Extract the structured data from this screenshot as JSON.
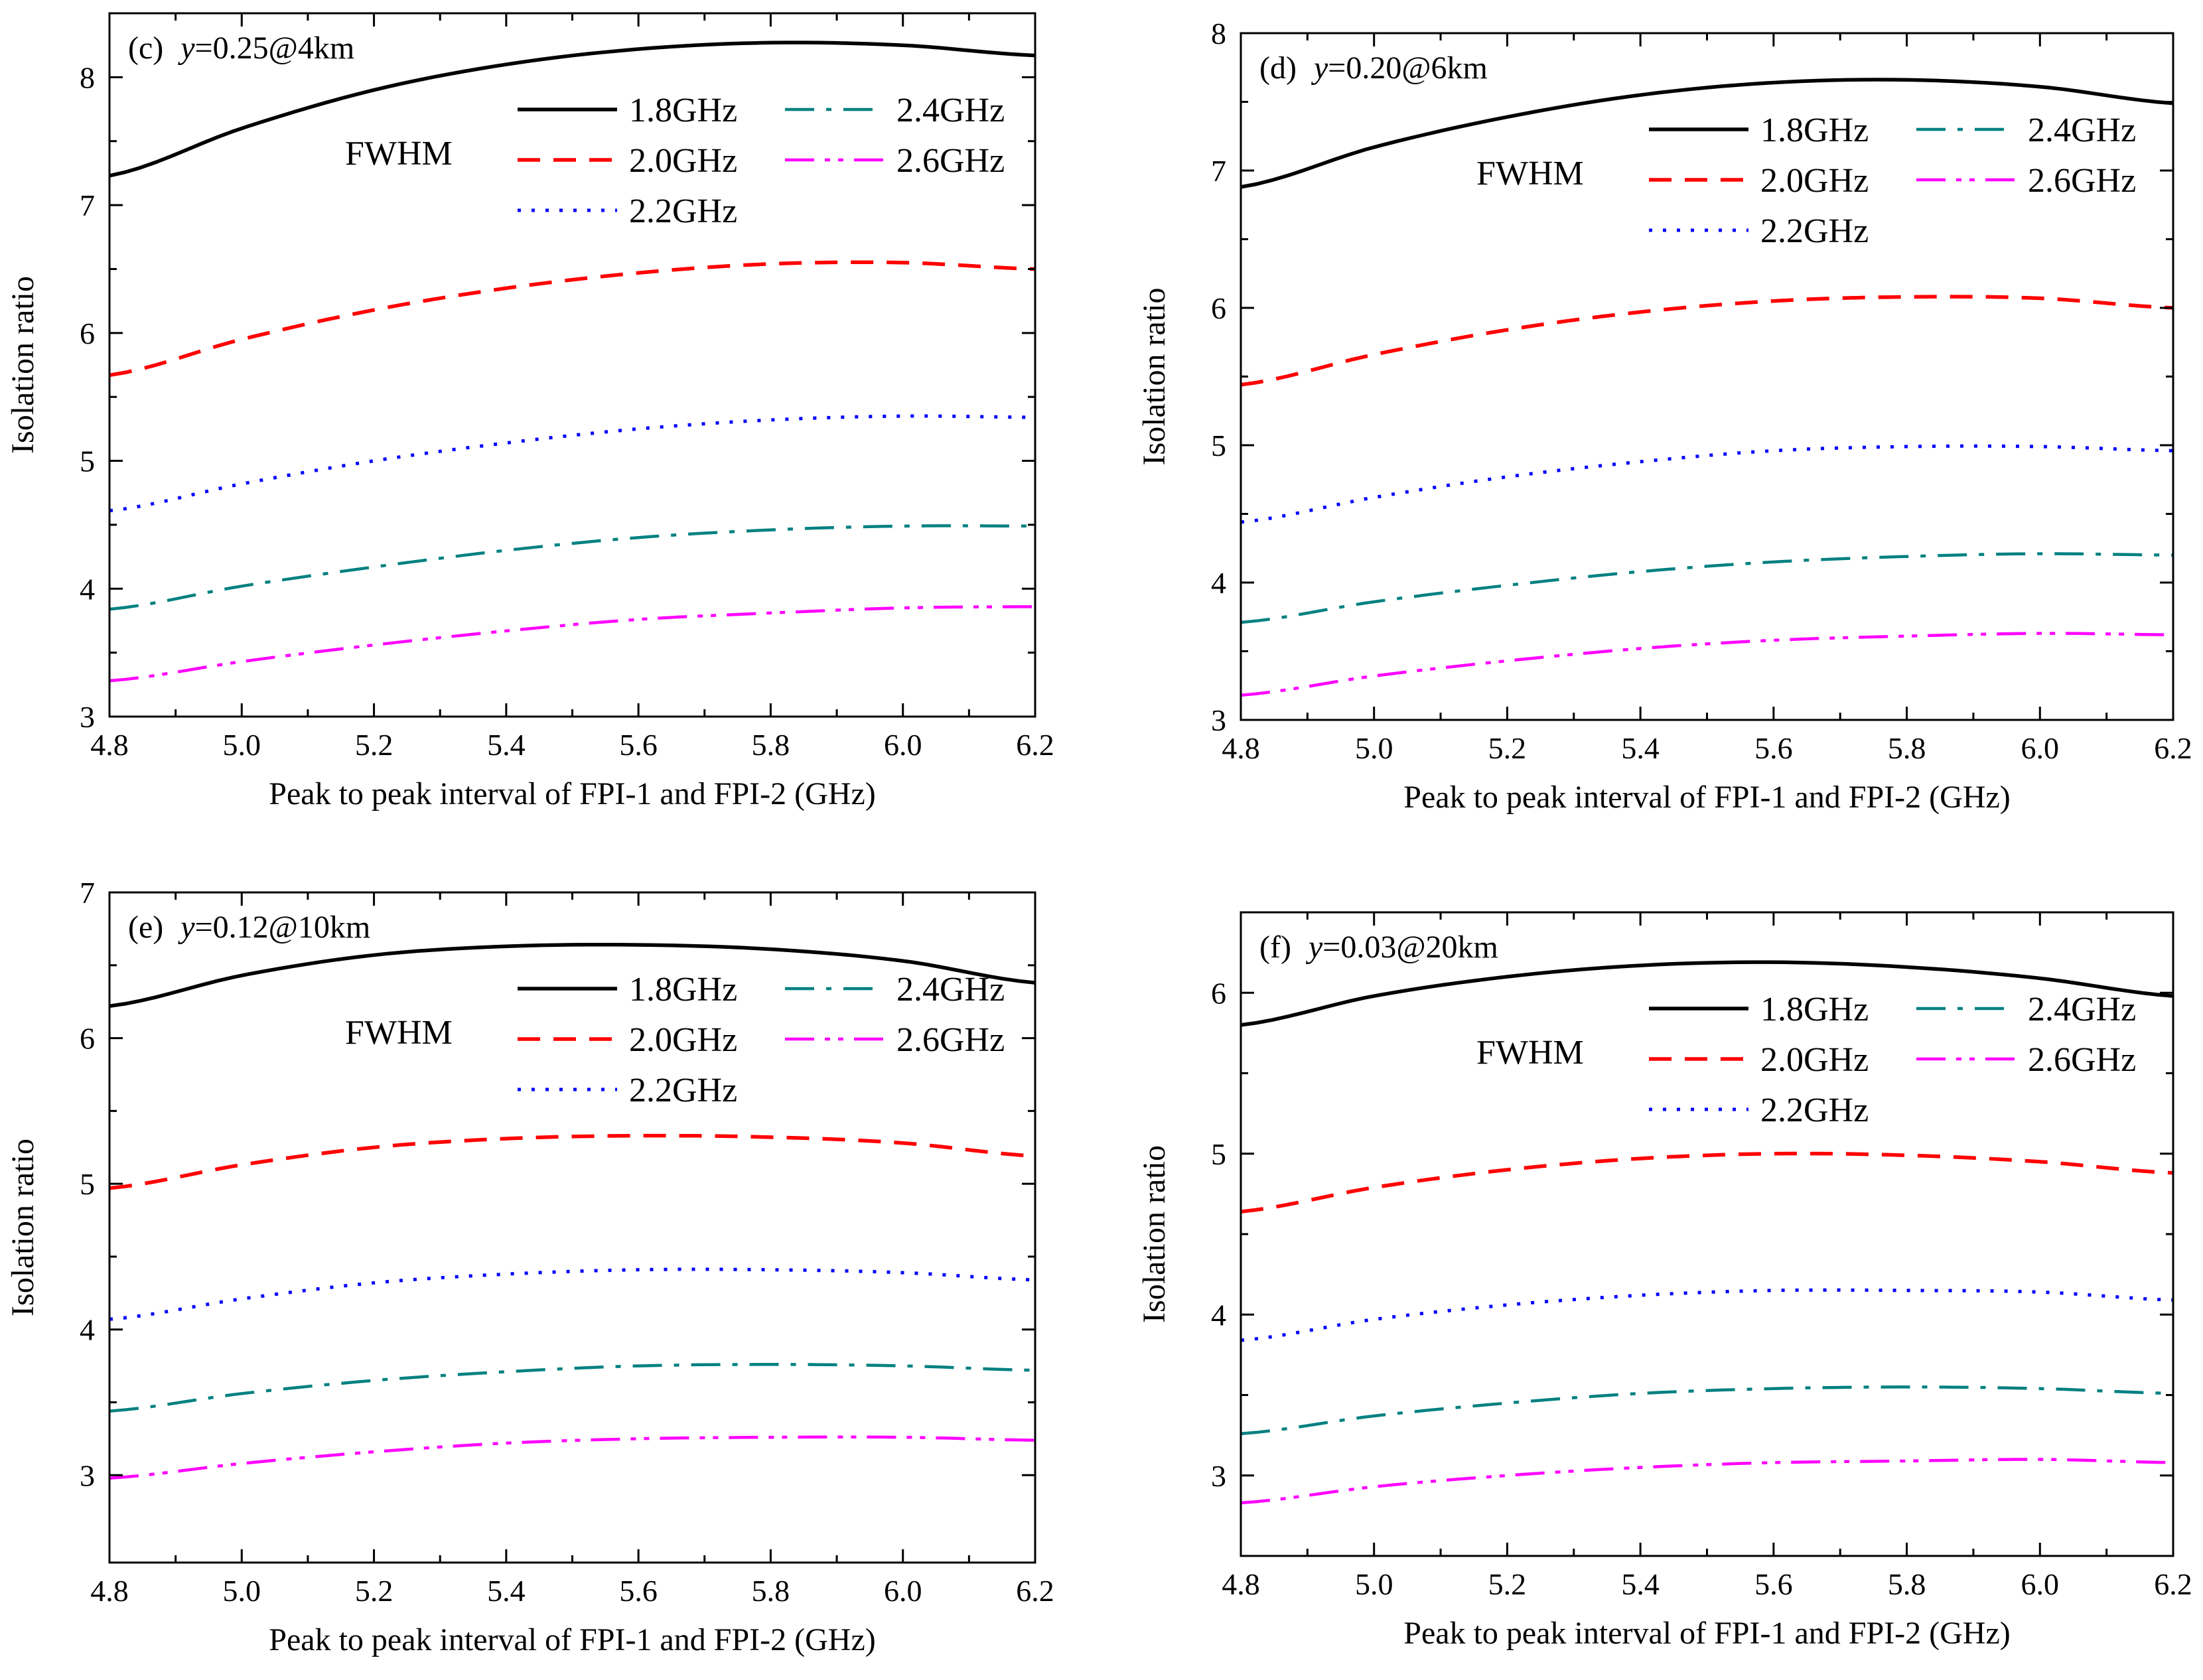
{
  "chart_data": [
    {
      "type": "line",
      "panel": "(c)",
      "annotation_symbol": "y",
      "annotation_rest": "=0.25@4km",
      "xlabel": "Peak to peak interval of FPI-1 and FPI-2 (GHz)",
      "ylabel": "Isolation ratio",
      "xlim": [
        4.8,
        6.2
      ],
      "ylim": [
        3,
        8.5
      ],
      "xticks": [
        "4.8",
        "5.0",
        "5.2",
        "5.4",
        "5.6",
        "5.8",
        "6.0",
        "6.2"
      ],
      "yticks": [
        "3",
        "4",
        "5",
        "6",
        "7",
        "8"
      ],
      "legend_title": "FWHM",
      "x": [
        4.8,
        5.0,
        5.2,
        5.4,
        5.6,
        5.8,
        6.0,
        6.2
      ],
      "series": [
        {
          "name": "1.8GHz",
          "color": "#000000",
          "values": [
            7.23,
            7.6,
            7.9,
            8.1,
            8.22,
            8.27,
            8.25,
            8.17
          ]
        },
        {
          "name": "2.0GHz",
          "color": "#ff0000",
          "values": [
            5.67,
            5.95,
            6.18,
            6.35,
            6.47,
            6.54,
            6.55,
            6.5
          ]
        },
        {
          "name": "2.2GHz",
          "color": "#0000ff",
          "values": [
            4.61,
            4.82,
            5.0,
            5.14,
            5.25,
            5.32,
            5.35,
            5.34
          ]
        },
        {
          "name": "2.4GHz",
          "color": "#008080",
          "values": [
            3.84,
            4.02,
            4.17,
            4.3,
            4.4,
            4.46,
            4.49,
            4.49
          ]
        },
        {
          "name": "2.6GHz",
          "color": "#ff00ff",
          "values": [
            3.28,
            3.43,
            3.56,
            3.67,
            3.76,
            3.81,
            3.85,
            3.86
          ]
        }
      ]
    },
    {
      "type": "line",
      "panel": "(d)",
      "annotation_symbol": "y",
      "annotation_rest": "=0.20@6km",
      "xlabel": "Peak to peak interval of FPI-1 and FPI-2 (GHz)",
      "ylabel": "Isolation ratio",
      "xlim": [
        4.8,
        6.2
      ],
      "ylim": [
        3,
        8
      ],
      "xticks": [
        "4.8",
        "5.0",
        "5.2",
        "5.4",
        "5.6",
        "5.8",
        "6.0",
        "6.2"
      ],
      "yticks": [
        "3",
        "4",
        "5",
        "6",
        "7",
        "8"
      ],
      "legend_title": "FWHM",
      "x": [
        4.8,
        5.0,
        5.2,
        5.4,
        5.6,
        5.8,
        6.0,
        6.2
      ],
      "series": [
        {
          "name": "1.8GHz",
          "color": "#000000",
          "values": [
            6.88,
            7.17,
            7.39,
            7.55,
            7.64,
            7.66,
            7.61,
            7.49
          ]
        },
        {
          "name": "2.0GHz",
          "color": "#ff0000",
          "values": [
            5.44,
            5.66,
            5.84,
            5.97,
            6.05,
            6.08,
            6.07,
            6.0
          ]
        },
        {
          "name": "2.2GHz",
          "color": "#0000ff",
          "values": [
            4.44,
            4.62,
            4.77,
            4.88,
            4.96,
            4.99,
            4.99,
            4.96
          ]
        },
        {
          "name": "2.4GHz",
          "color": "#008080",
          "values": [
            3.71,
            3.86,
            3.98,
            4.08,
            4.15,
            4.19,
            4.21,
            4.2
          ]
        },
        {
          "name": "2.6GHz",
          "color": "#ff00ff",
          "values": [
            3.18,
            3.32,
            3.43,
            3.52,
            3.58,
            3.61,
            3.63,
            3.62
          ]
        }
      ]
    },
    {
      "type": "line",
      "panel": "(e)",
      "annotation_symbol": "y",
      "annotation_rest": "=0.12@10km",
      "xlabel": "Peak to peak interval of FPI-1 and FPI-2 (GHz)",
      "ylabel": "Isolation ratio",
      "xlim": [
        4.8,
        6.2
      ],
      "ylim": [
        2.4,
        7
      ],
      "xticks": [
        "4.8",
        "5.0",
        "5.2",
        "5.4",
        "5.6",
        "5.8",
        "6.0",
        "6.2"
      ],
      "yticks": [
        "3",
        "4",
        "5",
        "6",
        "7"
      ],
      "legend_title": "FWHM",
      "x": [
        4.8,
        5.0,
        5.2,
        5.4,
        5.6,
        5.8,
        6.0,
        6.2
      ],
      "series": [
        {
          "name": "1.8GHz",
          "color": "#000000",
          "values": [
            6.22,
            6.43,
            6.57,
            6.63,
            6.64,
            6.61,
            6.53,
            6.38
          ]
        },
        {
          "name": "2.0GHz",
          "color": "#ff0000",
          "values": [
            4.97,
            5.13,
            5.25,
            5.31,
            5.33,
            5.32,
            5.28,
            5.19
          ]
        },
        {
          "name": "2.2GHz",
          "color": "#0000ff",
          "values": [
            4.07,
            4.21,
            4.32,
            4.38,
            4.41,
            4.41,
            4.39,
            4.34
          ]
        },
        {
          "name": "2.4GHz",
          "color": "#008080",
          "values": [
            3.44,
            3.56,
            3.65,
            3.71,
            3.75,
            3.76,
            3.75,
            3.72
          ]
        },
        {
          "name": "2.6GHz",
          "color": "#ff00ff",
          "values": [
            2.98,
            3.08,
            3.16,
            3.22,
            3.25,
            3.26,
            3.26,
            3.24
          ]
        }
      ]
    },
    {
      "type": "line",
      "panel": "(f)",
      "annotation_symbol": "y",
      "annotation_rest": "=0.03@20km",
      "xlabel": "Peak to peak interval of FPI-1 and FPI-2 (GHz)",
      "ylabel": "Isolation ratio",
      "xlim": [
        4.8,
        6.2
      ],
      "ylim": [
        2.5,
        6.5
      ],
      "xticks": [
        "4.8",
        "5.0",
        "5.2",
        "5.4",
        "5.6",
        "5.8",
        "6.0",
        "6.2"
      ],
      "yticks": [
        "3",
        "4",
        "5",
        "6"
      ],
      "legend_title": "FWHM",
      "x": [
        4.8,
        5.0,
        5.2,
        5.4,
        5.6,
        5.8,
        6.0,
        6.2
      ],
      "series": [
        {
          "name": "1.8GHz",
          "color": "#000000",
          "values": [
            5.8,
            5.98,
            6.1,
            6.17,
            6.19,
            6.16,
            6.09,
            5.98
          ]
        },
        {
          "name": "2.0GHz",
          "color": "#ff0000",
          "values": [
            4.64,
            4.79,
            4.9,
            4.97,
            5.0,
            4.99,
            4.95,
            4.88
          ]
        },
        {
          "name": "2.2GHz",
          "color": "#0000ff",
          "values": [
            3.84,
            3.97,
            4.06,
            4.12,
            4.15,
            4.15,
            4.14,
            4.09
          ]
        },
        {
          "name": "2.4GHz",
          "color": "#008080",
          "values": [
            3.26,
            3.37,
            3.45,
            3.51,
            3.54,
            3.55,
            3.54,
            3.51
          ]
        },
        {
          "name": "2.6GHz",
          "color": "#ff00ff",
          "values": [
            2.83,
            2.93,
            3.0,
            3.05,
            3.08,
            3.09,
            3.1,
            3.08
          ]
        }
      ]
    }
  ]
}
